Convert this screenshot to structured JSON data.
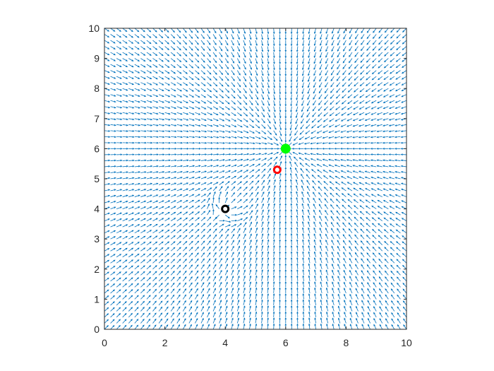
{
  "chart_data": {
    "type": "quiver",
    "title": "",
    "xlabel": "",
    "ylabel": "",
    "xlim": [
      0,
      10
    ],
    "ylim": [
      0,
      10
    ],
    "xticks": [
      0,
      2,
      4,
      6,
      8,
      10
    ],
    "yticks": [
      0,
      1,
      2,
      3,
      4,
      5,
      6,
      7,
      8,
      9,
      10
    ],
    "grid": false,
    "legend": "none",
    "field": {
      "grid_start": 0,
      "grid_end": 10,
      "grid_step": 0.2,
      "attractor": {
        "x": 6,
        "y": 6
      },
      "obstacle": {
        "x": 4,
        "y": 4
      },
      "color": "#0072bd"
    },
    "markers": [
      {
        "name": "goal",
        "x": 6.0,
        "y": 6.0,
        "style": "filled-circle",
        "color": "#00ff00"
      },
      {
        "name": "current",
        "x": 5.72,
        "y": 5.3,
        "style": "open-circle",
        "color": "#ff0000"
      },
      {
        "name": "obstacle",
        "x": 4.0,
        "y": 4.0,
        "style": "open-circle",
        "color": "#000000"
      }
    ]
  }
}
